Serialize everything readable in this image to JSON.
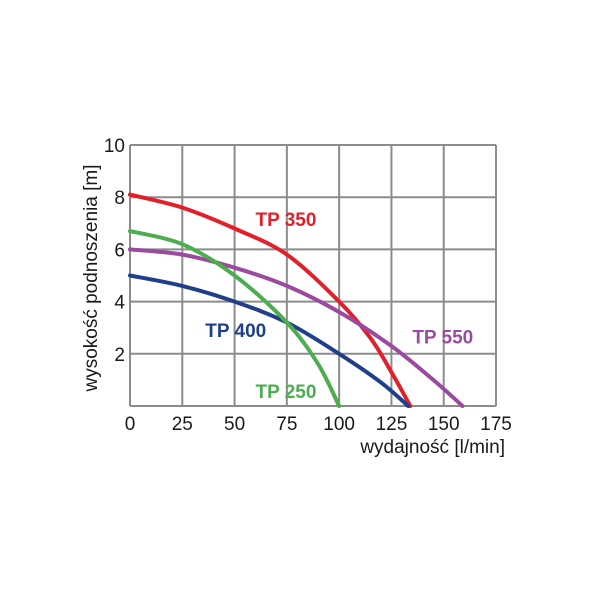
{
  "chart_data": {
    "type": "line",
    "xlabel": "wydajność  [l/min]",
    "ylabel": "wysokość podnoszenia [m]",
    "xlim": [
      0,
      175
    ],
    "ylim": [
      0,
      10
    ],
    "xticks": [
      0,
      25,
      50,
      75,
      100,
      125,
      150,
      175
    ],
    "yticks": [
      2,
      4,
      6,
      8,
      10
    ],
    "grid": true,
    "colors": {
      "grid": "#8c8c8c",
      "TP 350": "#e3202a",
      "TP 550": "#9b4a9f",
      "TP 400": "#1f3f8a",
      "TP 250": "#4cae4f"
    },
    "series": [
      {
        "name": "TP 350",
        "label_at": [
          60,
          6.9
        ],
        "points": [
          [
            0,
            8.1
          ],
          [
            25,
            7.6
          ],
          [
            50,
            6.8
          ],
          [
            75,
            5.8
          ],
          [
            100,
            4.0
          ],
          [
            115,
            2.6
          ],
          [
            125,
            1.3
          ],
          [
            134,
            0
          ]
        ]
      },
      {
        "name": "TP 550",
        "label_at": [
          135,
          2.4
        ],
        "points": [
          [
            0,
            6.0
          ],
          [
            25,
            5.8
          ],
          [
            50,
            5.3
          ],
          [
            75,
            4.6
          ],
          [
            100,
            3.6
          ],
          [
            125,
            2.3
          ],
          [
            145,
            1.0
          ],
          [
            159,
            0
          ]
        ]
      },
      {
        "name": "TP 400",
        "label_at": [
          36,
          2.65
        ],
        "points": [
          [
            0,
            5.0
          ],
          [
            25,
            4.6
          ],
          [
            50,
            4.0
          ],
          [
            75,
            3.2
          ],
          [
            100,
            2.0
          ],
          [
            120,
            0.9
          ],
          [
            133,
            0
          ]
        ]
      },
      {
        "name": "TP 250",
        "label_at": [
          60,
          0.3
        ],
        "points": [
          [
            0,
            6.7
          ],
          [
            25,
            6.2
          ],
          [
            50,
            5.0
          ],
          [
            75,
            3.2
          ],
          [
            90,
            1.6
          ],
          [
            100,
            0
          ]
        ]
      }
    ]
  }
}
